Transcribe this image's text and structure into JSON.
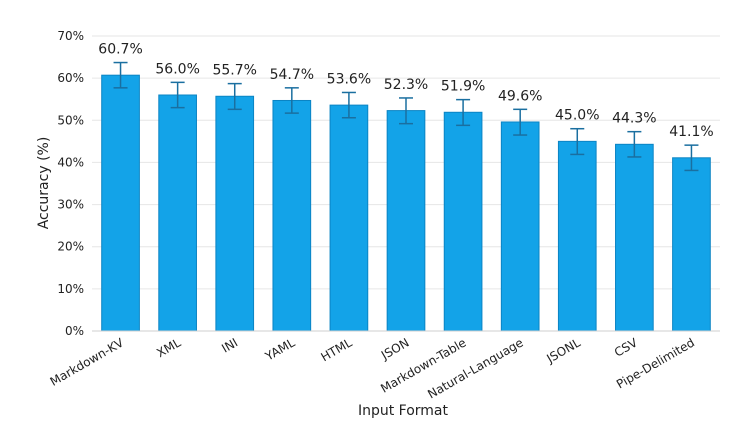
{
  "chart_data": {
    "type": "bar",
    "categories": [
      "Markdown-KV",
      "XML",
      "INI",
      "YAML",
      "HTML",
      "JSON",
      "Markdown-Table",
      "Natural-Language",
      "JSONL",
      "CSV",
      "Pipe-Delimited"
    ],
    "values": [
      60.7,
      56.0,
      55.7,
      54.7,
      53.6,
      52.3,
      51.9,
      49.6,
      45.0,
      44.3,
      41.1
    ],
    "error_low": [
      57.7,
      53.0,
      52.6,
      51.7,
      50.6,
      49.2,
      48.8,
      46.5,
      41.9,
      41.3,
      38.1
    ],
    "error_high": [
      63.7,
      59.0,
      58.7,
      57.7,
      56.6,
      55.3,
      54.9,
      52.6,
      48.0,
      47.3,
      44.1
    ],
    "data_labels": [
      "60.7%",
      "56.0%",
      "55.7%",
      "54.7%",
      "53.6%",
      "52.3%",
      "51.9%",
      "49.6%",
      "45.0%",
      "44.3%",
      "41.1%"
    ],
    "xlabel": "Input Format",
    "ylabel": "Accuracy (%)",
    "ylim": [
      0,
      70
    ],
    "yticks": [
      0,
      10,
      20,
      30,
      40,
      50,
      60,
      70
    ],
    "ytick_labels": [
      "0%",
      "10%",
      "20%",
      "30%",
      "40%",
      "50%",
      "60%",
      "70%"
    ],
    "grid": true,
    "bar_color": "#13a3e8",
    "bar_edge_color": "#0b84c4",
    "error_color": "#1a6fa0",
    "grid_color": "#e6e6e6"
  }
}
